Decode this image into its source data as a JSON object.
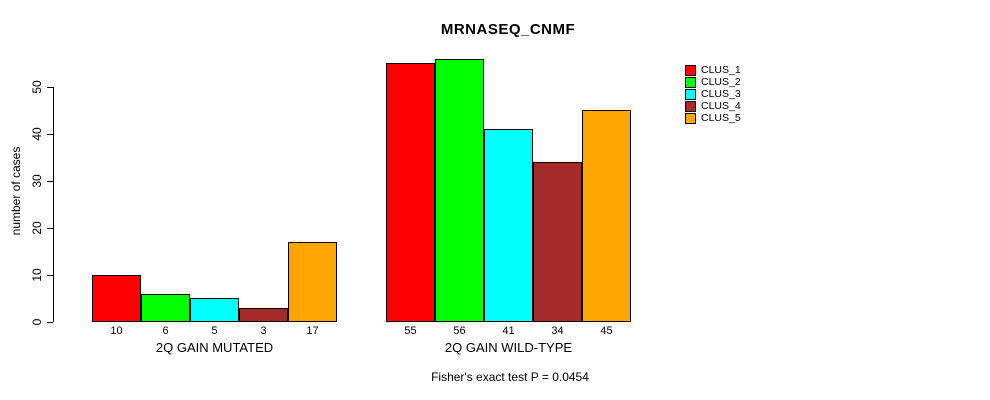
{
  "chart_data": {
    "type": "bar",
    "title": "MRNASEQ_CNMF",
    "ylabel": "number of cases",
    "xlabel": "",
    "ylim": [
      0,
      56
    ],
    "yticks": [
      0,
      10,
      20,
      30,
      40,
      50
    ],
    "grid": false,
    "legend_position": "right",
    "series_labels": [
      "CLUS_1",
      "CLUS_2",
      "CLUS_3",
      "CLUS_4",
      "CLUS_5"
    ],
    "colors": [
      "#FF0000",
      "#00FF00",
      "#00FFFF",
      "#A52A2A",
      "#FFA500"
    ],
    "groups": [
      {
        "label": "2Q GAIN MUTATED",
        "values": [
          10,
          6,
          5,
          3,
          17
        ]
      },
      {
        "label": "2Q GAIN WILD-TYPE",
        "values": [
          55,
          56,
          41,
          34,
          45
        ]
      }
    ],
    "annotation": "Fisher's exact test P = 0.0454"
  }
}
